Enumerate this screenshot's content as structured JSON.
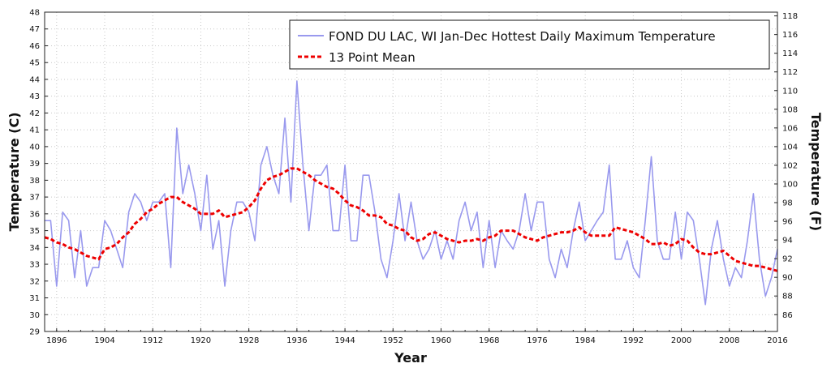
{
  "chart_data": {
    "type": "line",
    "xlabel": "Year",
    "ylabel": "Temperature (C)",
    "y2label": "Temperature (F)",
    "xlim": [
      1894,
      2016
    ],
    "ylim": [
      29,
      48
    ],
    "y2lim": [
      84.2,
      118.4
    ],
    "x_ticks": [
      "1896",
      "1904",
      "1912",
      "1920",
      "1928",
      "1936",
      "1944",
      "1952",
      "1960",
      "1968",
      "1976",
      "1984",
      "1992",
      "2000",
      "2008",
      "2016"
    ],
    "y_ticks": [
      "29",
      "30",
      "31",
      "32",
      "33",
      "34",
      "35",
      "36",
      "37",
      "38",
      "39",
      "40",
      "41",
      "42",
      "43",
      "44",
      "45",
      "46",
      "47",
      "48"
    ],
    "y2_ticks": [
      "86",
      "88",
      "90",
      "92",
      "94",
      "96",
      "98",
      "100",
      "102",
      "104",
      "106",
      "108",
      "110",
      "112",
      "114",
      "116",
      "118"
    ],
    "grid": true,
    "legend_position": "top-right",
    "colors": {
      "series": "#9999ee",
      "mean": "#ee0000"
    },
    "years": [
      1894,
      1895,
      1896,
      1897,
      1898,
      1899,
      1900,
      1901,
      1902,
      1903,
      1904,
      1905,
      1906,
      1907,
      1908,
      1909,
      1910,
      1911,
      1912,
      1913,
      1914,
      1915,
      1916,
      1917,
      1918,
      1919,
      1920,
      1921,
      1922,
      1923,
      1924,
      1925,
      1926,
      1927,
      1928,
      1929,
      1930,
      1931,
      1932,
      1933,
      1934,
      1935,
      1936,
      1937,
      1938,
      1939,
      1940,
      1941,
      1942,
      1943,
      1944,
      1945,
      1946,
      1947,
      1948,
      1949,
      1950,
      1951,
      1952,
      1953,
      1954,
      1955,
      1956,
      1957,
      1958,
      1959,
      1960,
      1961,
      1962,
      1963,
      1964,
      1965,
      1966,
      1967,
      1968,
      1969,
      1970,
      1971,
      1972,
      1973,
      1974,
      1975,
      1976,
      1977,
      1978,
      1979,
      1980,
      1981,
      1982,
      1983,
      1984,
      1985,
      1986,
      1987,
      1988,
      1989,
      1990,
      1991,
      1992,
      1993,
      1994,
      1995,
      1996,
      1997,
      1998,
      1999,
      2000,
      2001,
      2002,
      2003,
      2004,
      2005,
      2006,
      2007,
      2008,
      2009,
      2010,
      2011,
      2012,
      2013,
      2014,
      2015,
      2016
    ],
    "series": [
      {
        "name": "FOND DU LAC, WI  Jan-Dec  Hottest Daily Maximum Temperature",
        "style": "solid",
        "values": [
          35.6,
          35.6,
          31.7,
          36.1,
          35.6,
          32.2,
          35.0,
          31.7,
          32.8,
          32.8,
          35.6,
          35.0,
          33.9,
          32.8,
          36.1,
          37.2,
          36.7,
          35.6,
          36.7,
          36.7,
          37.2,
          32.8,
          41.1,
          37.2,
          38.9,
          37.2,
          35.0,
          38.3,
          33.9,
          35.6,
          31.7,
          35.0,
          36.7,
          36.7,
          36.1,
          34.4,
          38.9,
          40.0,
          38.3,
          37.2,
          41.7,
          36.7,
          43.9,
          38.9,
          35.0,
          38.3,
          38.3,
          38.9,
          35.0,
          35.0,
          38.9,
          34.4,
          34.4,
          38.3,
          38.3,
          36.1,
          33.3,
          32.2,
          34.4,
          37.2,
          34.4,
          36.7,
          34.4,
          33.3,
          33.9,
          35.0,
          33.3,
          34.4,
          33.3,
          35.6,
          36.7,
          35.0,
          36.1,
          32.8,
          35.6,
          32.8,
          35.0,
          34.4,
          33.9,
          35.0,
          37.2,
          35.0,
          36.7,
          36.7,
          33.3,
          32.2,
          33.9,
          32.8,
          35.0,
          36.7,
          34.4,
          35.0,
          35.6,
          36.1,
          38.9,
          33.3,
          33.3,
          34.4,
          32.8,
          32.2,
          35.6,
          39.4,
          34.4,
          33.3,
          33.3,
          36.1,
          33.3,
          36.1,
          35.6,
          33.3,
          30.6,
          33.9,
          35.6,
          33.3,
          31.7,
          32.8,
          32.2,
          34.4,
          37.2,
          33.3,
          31.1,
          32.2,
          33.9
        ]
      },
      {
        "name": "13 Point Mean",
        "style": "dashed",
        "values": [
          34.6,
          34.5,
          34.3,
          34.2,
          34.0,
          33.9,
          33.7,
          33.5,
          33.4,
          33.3,
          33.9,
          34.0,
          34.2,
          34.6,
          34.9,
          35.4,
          35.7,
          36.1,
          36.3,
          36.6,
          36.8,
          37.0,
          37.0,
          36.7,
          36.5,
          36.3,
          36.0,
          36.0,
          36.0,
          36.2,
          35.8,
          35.9,
          36.0,
          36.1,
          36.4,
          36.8,
          37.5,
          38.0,
          38.2,
          38.3,
          38.5,
          38.7,
          38.7,
          38.5,
          38.3,
          38.0,
          37.8,
          37.6,
          37.5,
          37.2,
          36.8,
          36.5,
          36.4,
          36.2,
          35.9,
          35.9,
          35.8,
          35.4,
          35.3,
          35.1,
          35.0,
          34.6,
          34.4,
          34.5,
          34.8,
          34.9,
          34.7,
          34.5,
          34.4,
          34.3,
          34.4,
          34.4,
          34.5,
          34.4,
          34.6,
          34.7,
          35.0,
          35.0,
          35.0,
          34.8,
          34.6,
          34.5,
          34.4,
          34.6,
          34.7,
          34.8,
          34.9,
          34.9,
          35.0,
          35.2,
          34.9,
          34.7,
          34.7,
          34.7,
          34.7,
          35.2,
          35.1,
          35.0,
          34.9,
          34.7,
          34.5,
          34.2,
          34.2,
          34.3,
          34.1,
          34.2,
          34.5,
          34.4,
          34.0,
          33.7,
          33.6,
          33.6,
          33.7,
          33.8,
          33.5,
          33.2,
          33.1,
          33.0,
          32.9,
          32.9,
          32.8,
          32.7,
          32.6
        ]
      }
    ]
  }
}
